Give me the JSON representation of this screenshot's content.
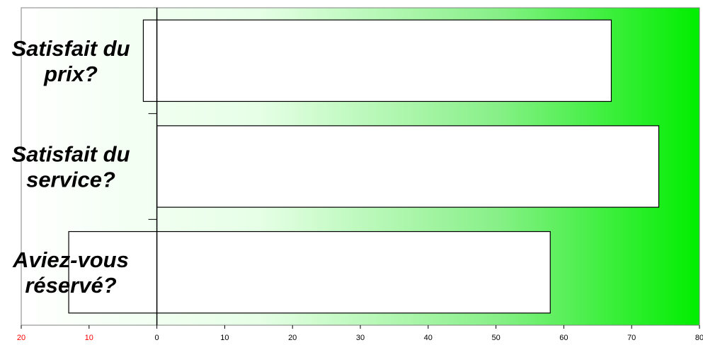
{
  "chart_data": {
    "type": "bar",
    "orientation": "horizontal",
    "categories": [
      [
        "Satisfait du",
        "prix?"
      ],
      [
        "Satisfait du",
        "service?"
      ],
      [
        "Aviez-vous",
        "réservé?"
      ]
    ],
    "bars": [
      {
        "start": -2,
        "end": 67
      },
      {
        "start": 0,
        "end": 74
      },
      {
        "start": -13,
        "end": 58
      }
    ],
    "xlim": [
      -20,
      80
    ],
    "xticks": [
      -20,
      -10,
      0,
      10,
      20,
      30,
      40,
      50,
      60,
      70,
      80
    ],
    "xtick_labels": [
      "20",
      "10",
      "0",
      "10",
      "20",
      "30",
      "40",
      "50",
      "60",
      "70",
      "80"
    ],
    "title": "",
    "xlabel": "",
    "ylabel": "",
    "grid": false,
    "legend": "none",
    "colors": {
      "background_start": "#ffffff",
      "background_end": "#00ee00",
      "bar_fill": "#ffffff",
      "bar_stroke": "#000000",
      "negative_tick_label": "#ff0000",
      "positive_tick_label": "#000000"
    }
  }
}
